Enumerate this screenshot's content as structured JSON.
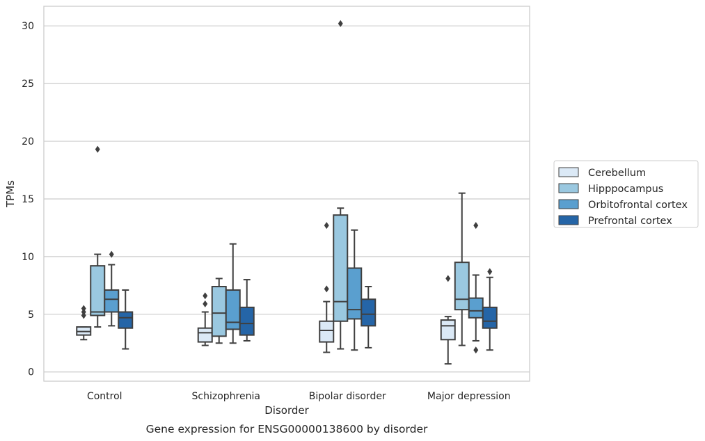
{
  "caption": "Gene expression for ENSG00000138600 by disorder",
  "chart_data": {
    "type": "boxplot",
    "xlabel": "Disorder",
    "ylabel": "TPMs",
    "ylim": [
      -0.8,
      31.7
    ],
    "yticks": [
      0,
      5,
      10,
      15,
      20,
      25,
      30
    ],
    "grid": "horizontal",
    "legend_position": "right",
    "categories": [
      "Control",
      "Schizophrenia",
      "Bipolar disorder",
      "Major depression"
    ],
    "series": [
      {
        "name": "Cerebellum",
        "color": "#dbe9f6",
        "boxes": [
          {
            "whisker_low": 2.8,
            "q1": 3.2,
            "median": 3.5,
            "q3": 3.9,
            "whisker_high": 3.9,
            "fliers": [
              4.9,
              5.2,
              5.5
            ]
          },
          {
            "whisker_low": 2.3,
            "q1": 2.6,
            "median": 3.4,
            "q3": 3.8,
            "whisker_high": 5.2,
            "fliers": [
              5.9,
              6.6
            ]
          },
          {
            "whisker_low": 1.7,
            "q1": 2.6,
            "median": 3.6,
            "q3": 4.4,
            "whisker_high": 6.1,
            "fliers": [
              7.2,
              12.7
            ]
          },
          {
            "whisker_low": 0.7,
            "q1": 2.8,
            "median": 4.0,
            "q3": 4.5,
            "whisker_high": 4.8,
            "fliers": [
              8.1
            ]
          }
        ]
      },
      {
        "name": "Hipppocampus",
        "color": "#9ac8e0",
        "boxes": [
          {
            "whisker_low": 3.9,
            "q1": 4.9,
            "median": 5.2,
            "q3": 9.2,
            "whisker_high": 10.2,
            "fliers": [
              19.3
            ]
          },
          {
            "whisker_low": 2.5,
            "q1": 3.1,
            "median": 5.1,
            "q3": 7.4,
            "whisker_high": 8.1,
            "fliers": []
          },
          {
            "whisker_low": 2.0,
            "q1": 4.4,
            "median": 6.1,
            "q3": 13.6,
            "whisker_high": 14.2,
            "fliers": [
              30.2
            ]
          },
          {
            "whisker_low": 2.3,
            "q1": 5.4,
            "median": 6.3,
            "q3": 9.5,
            "whisker_high": 15.5,
            "fliers": []
          }
        ]
      },
      {
        "name": "Orbitofrontal cortex",
        "color": "#5a9fcf",
        "boxes": [
          {
            "whisker_low": 4.0,
            "q1": 5.2,
            "median": 6.3,
            "q3": 7.1,
            "whisker_high": 9.3,
            "fliers": [
              10.2
            ]
          },
          {
            "whisker_low": 2.5,
            "q1": 3.7,
            "median": 4.3,
            "q3": 7.1,
            "whisker_high": 11.1,
            "fliers": []
          },
          {
            "whisker_low": 1.9,
            "q1": 4.6,
            "median": 5.4,
            "q3": 9.0,
            "whisker_high": 12.3,
            "fliers": []
          },
          {
            "whisker_low": 2.7,
            "q1": 4.7,
            "median": 5.3,
            "q3": 6.4,
            "whisker_high": 8.4,
            "fliers": [
              1.9,
              12.7
            ]
          }
        ]
      },
      {
        "name": "Prefrontal cortex",
        "color": "#2565a7",
        "boxes": [
          {
            "whisker_low": 2.0,
            "q1": 3.8,
            "median": 4.7,
            "q3": 5.2,
            "whisker_high": 7.1,
            "fliers": []
          },
          {
            "whisker_low": 2.7,
            "q1": 3.2,
            "median": 4.2,
            "q3": 5.6,
            "whisker_high": 8.0,
            "fliers": []
          },
          {
            "whisker_low": 2.1,
            "q1": 4.0,
            "median": 5.0,
            "q3": 6.3,
            "whisker_high": 7.4,
            "fliers": []
          },
          {
            "whisker_low": 1.9,
            "q1": 3.8,
            "median": 4.4,
            "q3": 5.6,
            "whisker_high": 8.2,
            "fliers": [
              8.7
            ]
          }
        ]
      }
    ]
  }
}
